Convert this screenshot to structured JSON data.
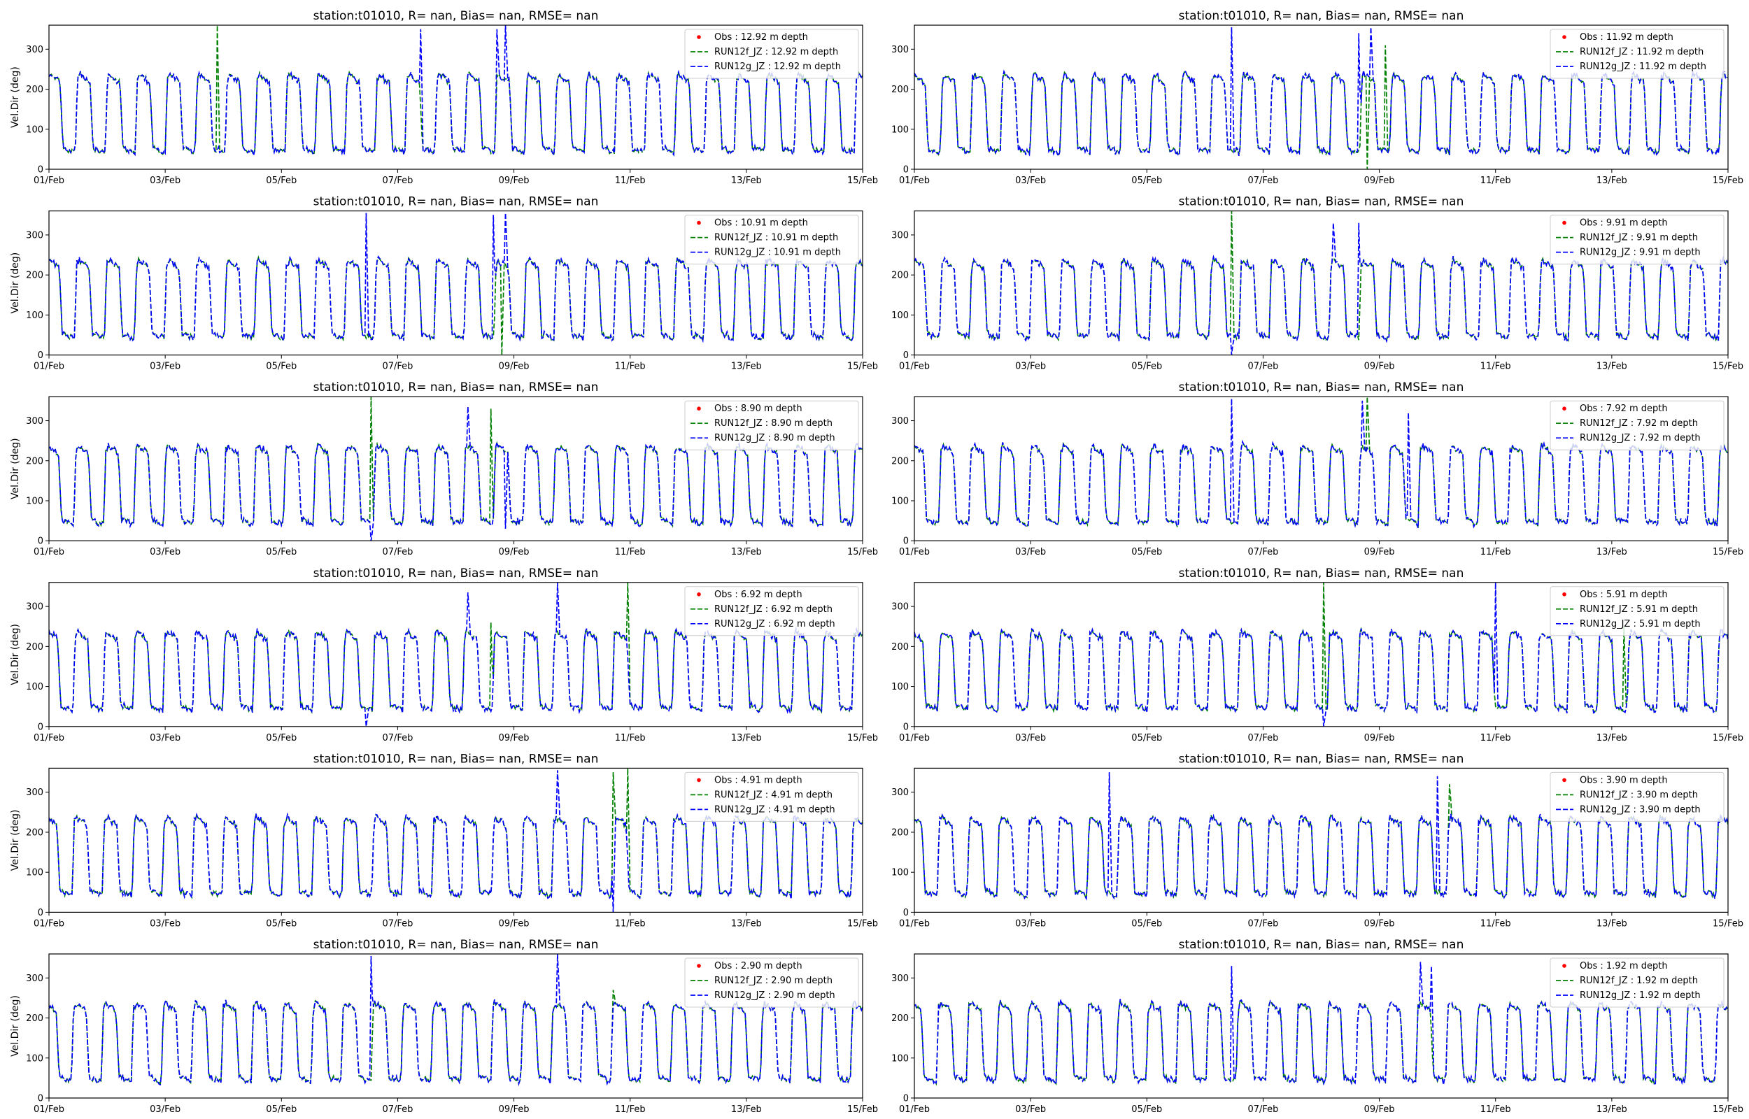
{
  "colors": {
    "obs": "#ff0000",
    "run12f": "#008000",
    "run12g": "#0000ff"
  },
  "chart_data": [
    {
      "type": "line",
      "title": "station:t01010, R=   nan, Bias=    nan, RMSE=    nan",
      "ylabel": "Vel.Dir (deg)",
      "ylim": [
        0,
        360
      ],
      "yticks": [
        0,
        100,
        200,
        300
      ],
      "x_ticks": [
        "01/Feb",
        "03/Feb",
        "05/Feb",
        "07/Feb",
        "09/Feb",
        "11/Feb",
        "13/Feb",
        "15/Feb"
      ],
      "xlim_days": [
        0,
        14
      ],
      "legend": [
        "Obs : 12.92 m depth",
        "RUN12f_JZ : 12.92 m depth",
        "RUN12g_JZ : 12.92 m depth"
      ],
      "legend_position": "upper right",
      "spikes_12f": [
        [
          2.9,
          360
        ],
        [
          7.9,
          230
        ]
      ],
      "spikes_12g": [
        [
          6.4,
          350
        ],
        [
          7.7,
          350
        ],
        [
          7.85,
          360
        ]
      ]
    },
    {
      "type": "line",
      "title": "station:t01010, R=   nan, Bias=    nan, RMSE=    nan",
      "ylabel": "",
      "ylim": [
        0,
        360
      ],
      "yticks": [
        0,
        100,
        200,
        300
      ],
      "x_ticks": [
        "01/Feb",
        "03/Feb",
        "05/Feb",
        "07/Feb",
        "09/Feb",
        "11/Feb",
        "13/Feb",
        "15/Feb"
      ],
      "xlim_days": [
        0,
        14
      ],
      "legend": [
        "Obs : 11.92 m depth",
        "RUN12f_JZ : 11.92 m depth",
        "RUN12g_JZ : 11.92 m depth"
      ],
      "legend_position": "upper right",
      "spikes_12f": [
        [
          7.8,
          0
        ],
        [
          8.1,
          310
        ]
      ],
      "spikes_12g": [
        [
          5.45,
          355
        ],
        [
          7.65,
          340
        ],
        [
          7.85,
          355
        ]
      ]
    },
    {
      "type": "line",
      "title": "station:t01010, R=   nan, Bias=    nan, RMSE=    nan",
      "ylabel": "Vel.Dir (deg)",
      "ylim": [
        0,
        360
      ],
      "yticks": [
        0,
        100,
        200,
        300
      ],
      "x_ticks": [
        "01/Feb",
        "03/Feb",
        "05/Feb",
        "07/Feb",
        "09/Feb",
        "11/Feb",
        "13/Feb",
        "15/Feb"
      ],
      "xlim_days": [
        0,
        14
      ],
      "legend": [
        "Obs : 10.91 m depth",
        "RUN12f_JZ : 10.91 m depth",
        "RUN12g_JZ : 10.91 m depth"
      ],
      "legend_position": "upper right",
      "spikes_12f": [
        [
          7.8,
          0
        ]
      ],
      "spikes_12g": [
        [
          5.45,
          355
        ],
        [
          7.65,
          350
        ],
        [
          7.85,
          355
        ]
      ]
    },
    {
      "type": "line",
      "title": "station:t01010, R=   nan, Bias=    nan, RMSE=    nan",
      "ylabel": "",
      "ylim": [
        0,
        360
      ],
      "yticks": [
        0,
        100,
        200,
        300
      ],
      "x_ticks": [
        "01/Feb",
        "03/Feb",
        "05/Feb",
        "07/Feb",
        "09/Feb",
        "11/Feb",
        "13/Feb",
        "15/Feb"
      ],
      "xlim_days": [
        0,
        14
      ],
      "legend": [
        "Obs : 9.91 m depth",
        "RUN12f_JZ : 9.91 m depth",
        "RUN12g_JZ : 9.91 m depth"
      ],
      "legend_position": "upper right",
      "spikes_12f": [
        [
          5.45,
          360
        ]
      ],
      "spikes_12g": [
        [
          5.45,
          0
        ],
        [
          7.2,
          330
        ],
        [
          7.65,
          330
        ]
      ]
    },
    {
      "type": "line",
      "title": "station:t01010, R=   nan, Bias=    nan, RMSE=    nan",
      "ylabel": "Vel.Dir (deg)",
      "ylim": [
        0,
        360
      ],
      "yticks": [
        0,
        100,
        200,
        300
      ],
      "x_ticks": [
        "01/Feb",
        "03/Feb",
        "05/Feb",
        "07/Feb",
        "09/Feb",
        "11/Feb",
        "13/Feb",
        "15/Feb"
      ],
      "xlim_days": [
        0,
        14
      ],
      "legend": [
        "Obs : 8.90 m depth",
        "RUN12f_JZ : 8.90 m depth",
        "RUN12g_JZ : 8.90 m depth"
      ],
      "legend_position": "upper right",
      "spikes_12f": [
        [
          5.55,
          360
        ],
        [
          7.6,
          330
        ]
      ],
      "spikes_12g": [
        [
          5.55,
          0
        ],
        [
          7.2,
          335
        ],
        [
          7.85,
          30
        ]
      ]
    },
    {
      "type": "line",
      "title": "station:t01010, R=   nan, Bias=    nan, RMSE=    nan",
      "ylabel": "",
      "ylim": [
        0,
        360
      ],
      "yticks": [
        0,
        100,
        200,
        300
      ],
      "x_ticks": [
        "01/Feb",
        "03/Feb",
        "05/Feb",
        "07/Feb",
        "09/Feb",
        "11/Feb",
        "13/Feb",
        "15/Feb"
      ],
      "xlim_days": [
        0,
        14
      ],
      "legend": [
        "Obs : 7.92 m depth",
        "RUN12f_JZ : 7.92 m depth",
        "RUN12g_JZ : 7.92 m depth"
      ],
      "legend_position": "upper right",
      "spikes_12f": [
        [
          7.8,
          360
        ]
      ],
      "spikes_12g": [
        [
          5.45,
          355
        ],
        [
          7.7,
          350
        ],
        [
          8.5,
          320
        ]
      ]
    },
    {
      "type": "line",
      "title": "station:t01010, R=   nan, Bias=    nan, RMSE=    nan",
      "ylabel": "Vel.Dir (deg)",
      "ylim": [
        0,
        360
      ],
      "yticks": [
        0,
        100,
        200,
        300
      ],
      "x_ticks": [
        "01/Feb",
        "03/Feb",
        "05/Feb",
        "07/Feb",
        "09/Feb",
        "11/Feb",
        "13/Feb",
        "15/Feb"
      ],
      "xlim_days": [
        0,
        14
      ],
      "legend": [
        "Obs : 6.92 m depth",
        "RUN12f_JZ : 6.92 m depth",
        "RUN12g_JZ : 6.92 m depth"
      ],
      "legend_position": "upper right",
      "spikes_12f": [
        [
          7.6,
          260
        ],
        [
          9.95,
          360
        ]
      ],
      "spikes_12g": [
        [
          5.45,
          0
        ],
        [
          7.2,
          335
        ],
        [
          8.75,
          360
        ]
      ]
    },
    {
      "type": "line",
      "title": "station:t01010, R=   nan, Bias=    nan, RMSE=    nan",
      "ylabel": "",
      "ylim": [
        0,
        360
      ],
      "yticks": [
        0,
        100,
        200,
        300
      ],
      "x_ticks": [
        "01/Feb",
        "03/Feb",
        "05/Feb",
        "07/Feb",
        "09/Feb",
        "11/Feb",
        "13/Feb",
        "15/Feb"
      ],
      "xlim_days": [
        0,
        14
      ],
      "legend": [
        "Obs : 5.91 m depth",
        "RUN12f_JZ : 5.91 m depth",
        "RUN12g_JZ : 5.91 m depth"
      ],
      "legend_position": "upper right",
      "spikes_12f": [
        [
          7.05,
          360
        ],
        [
          12.2,
          250
        ]
      ],
      "spikes_12g": [
        [
          7.05,
          0
        ],
        [
          10.0,
          360
        ]
      ]
    },
    {
      "type": "line",
      "title": "station:t01010, R=   nan, Bias=    nan, RMSE=    nan",
      "ylabel": "Vel.Dir (deg)",
      "ylim": [
        0,
        360
      ],
      "yticks": [
        0,
        100,
        200,
        300
      ],
      "x_ticks": [
        "01/Feb",
        "03/Feb",
        "05/Feb",
        "07/Feb",
        "09/Feb",
        "11/Feb",
        "13/Feb",
        "15/Feb"
      ],
      "xlim_days": [
        0,
        14
      ],
      "legend": [
        "Obs : 4.91 m depth",
        "RUN12f_JZ : 4.91 m depth",
        "RUN12g_JZ : 4.91 m depth"
      ],
      "legend_position": "upper right",
      "spikes_12f": [
        [
          9.7,
          350
        ],
        [
          9.95,
          360
        ]
      ],
      "spikes_12g": [
        [
          8.75,
          355
        ],
        [
          9.7,
          0
        ]
      ]
    },
    {
      "type": "line",
      "title": "station:t01010, R=   nan, Bias=    nan, RMSE=    nan",
      "ylabel": "",
      "ylim": [
        0,
        360
      ],
      "yticks": [
        0,
        100,
        200,
        300
      ],
      "x_ticks": [
        "01/Feb",
        "03/Feb",
        "05/Feb",
        "07/Feb",
        "09/Feb",
        "11/Feb",
        "13/Feb",
        "15/Feb"
      ],
      "xlim_days": [
        0,
        14
      ],
      "legend": [
        "Obs : 3.90 m depth",
        "RUN12f_JZ : 3.90 m depth",
        "RUN12g_JZ : 3.90 m depth"
      ],
      "legend_position": "upper right",
      "spikes_12f": [
        [
          9.2,
          320
        ]
      ],
      "spikes_12g": [
        [
          3.35,
          350
        ],
        [
          9.0,
          340
        ]
      ]
    },
    {
      "type": "line",
      "title": "station:t01010, R=   nan, Bias=    nan, RMSE=    nan",
      "ylabel": "Vel.Dir (deg)",
      "ylim": [
        0,
        360
      ],
      "yticks": [
        0,
        100,
        200,
        300
      ],
      "x_ticks": [
        "01/Feb",
        "03/Feb",
        "05/Feb",
        "07/Feb",
        "09/Feb",
        "11/Feb",
        "13/Feb",
        "15/Feb"
      ],
      "xlim_days": [
        0,
        14
      ],
      "legend": [
        "Obs : 2.90 m depth",
        "RUN12f_JZ : 2.90 m depth",
        "RUN12g_JZ : 2.90 m depth"
      ],
      "legend_position": "upper right",
      "spikes_12f": [
        [
          9.7,
          270
        ]
      ],
      "spikes_12g": [
        [
          5.55,
          355
        ],
        [
          8.75,
          360
        ]
      ]
    },
    {
      "type": "line",
      "title": "station:t01010, R=   nan, Bias=    nan, RMSE=    nan",
      "ylabel": "",
      "ylim": [
        0,
        360
      ],
      "yticks": [
        0,
        100,
        200,
        300
      ],
      "x_ticks": [
        "01/Feb",
        "03/Feb",
        "05/Feb",
        "07/Feb",
        "09/Feb",
        "11/Feb",
        "13/Feb",
        "15/Feb"
      ],
      "xlim_days": [
        0,
        14
      ],
      "legend": [
        "Obs : 1.92 m depth",
        "RUN12f_JZ : 1.92 m depth",
        "RUN12g_JZ : 1.92 m depth"
      ],
      "legend_position": "upper right",
      "spikes_12f": [],
      "spikes_12g": [
        [
          5.45,
          330
        ],
        [
          8.7,
          340
        ],
        [
          8.9,
          330
        ]
      ]
    }
  ]
}
